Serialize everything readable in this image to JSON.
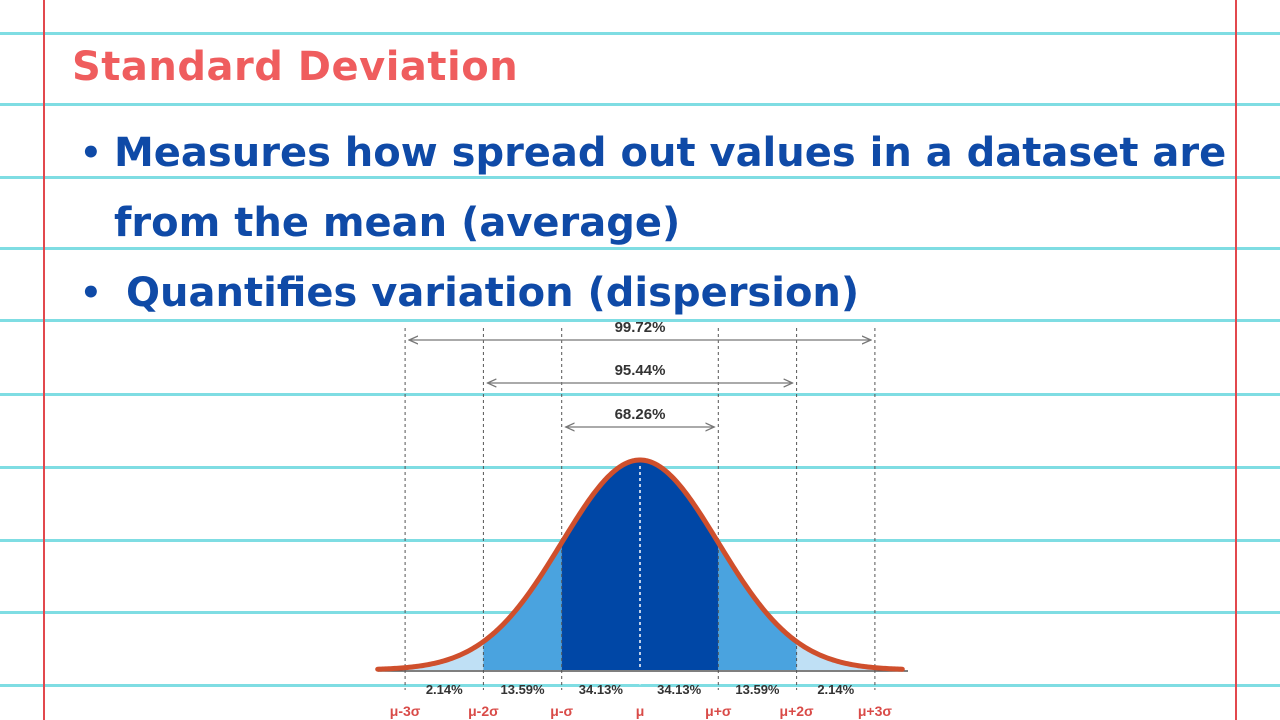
{
  "title": "Standard Deviation",
  "bullets": [
    "Measures how spread out values in a dataset are from the mean (average)",
    "Quantifies variation (dispersion)"
  ],
  "bullet_glyph": "•",
  "colors": {
    "title": "#ef5d5e",
    "bullet_text": "#0f4aa7",
    "paper_rule": "#7fdde3",
    "paper_margin": "#e2484d",
    "curve": "#cf4f2c",
    "band_1sigma": "#0047a6",
    "band_2sigma": "#4aa3df",
    "band_3sigma": "#bfe0f5"
  },
  "chart_data": {
    "type": "area",
    "distribution": "normal",
    "x_ticks": [
      "μ-3σ",
      "μ-2σ",
      "μ-σ",
      "μ",
      "μ+σ",
      "μ+2σ",
      "μ+3σ"
    ],
    "segments": [
      {
        "from": "μ-3σ",
        "to": "μ-2σ",
        "percent": "2.14%"
      },
      {
        "from": "μ-2σ",
        "to": "μ-σ",
        "percent": "13.59%"
      },
      {
        "from": "μ-σ",
        "to": "μ",
        "percent": "34.13%"
      },
      {
        "from": "μ",
        "to": "μ+σ",
        "percent": "34.13%"
      },
      {
        "from": "μ+σ",
        "to": "μ+2σ",
        "percent": "13.59%"
      },
      {
        "from": "μ+2σ",
        "to": "μ+3σ",
        "percent": "2.14%"
      }
    ],
    "intervals": [
      {
        "range": [
          -3,
          3
        ],
        "percent": "99.72%"
      },
      {
        "range": [
          -2,
          2
        ],
        "percent": "95.44%"
      },
      {
        "range": [
          -1,
          1
        ],
        "percent": "68.26%"
      }
    ]
  }
}
